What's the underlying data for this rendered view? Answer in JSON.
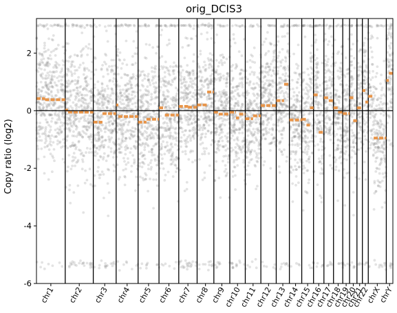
{
  "chart_data": {
    "type": "scatter",
    "title": "orig_DCIS3",
    "xlabel": "",
    "ylabel": "Copy ratio (log2)",
    "ylim": [
      -6,
      3.2
    ],
    "yticks": [
      -6,
      -4,
      -2,
      0,
      2
    ],
    "grid": false,
    "legend": "none",
    "colors": {
      "points": "#808080",
      "segments": "#e8954a",
      "lines": "#000000"
    },
    "chromosomes": [
      "chr1",
      "chr2",
      "chr3",
      "chr4",
      "chr5",
      "chr6",
      "chr7",
      "chr8",
      "chr9",
      "chr10",
      "chr11",
      "chr12",
      "chr13",
      "chr14",
      "chr15",
      "chr16",
      "chr17",
      "chr18",
      "chr19",
      "chr20",
      "chr21",
      "chr22",
      "chrX",
      "chrY"
    ],
    "chrom_sizes": [
      249,
      243,
      198,
      190,
      181,
      171,
      159,
      145,
      138,
      134,
      135,
      133,
      114,
      107,
      102,
      90,
      83,
      80,
      59,
      64,
      47,
      51,
      156,
      57
    ],
    "segments": [
      {
        "chrom": "chr1",
        "start": 0.0,
        "end": 0.3,
        "value": 0.42
      },
      {
        "chrom": "chr1",
        "start": 0.3,
        "end": 1.0,
        "value": 0.38
      },
      {
        "chrom": "chr2",
        "start": 0.0,
        "end": 0.1,
        "value": 0.02
      },
      {
        "chrom": "chr2",
        "start": 0.1,
        "end": 1.0,
        "value": -0.05
      },
      {
        "chrom": "chr3",
        "start": 0.0,
        "end": 0.4,
        "value": -0.4
      },
      {
        "chrom": "chr3",
        "start": 0.4,
        "end": 1.0,
        "value": -0.1
      },
      {
        "chrom": "chr4",
        "start": 0.0,
        "end": 0.1,
        "value": 0.2
      },
      {
        "chrom": "chr4",
        "start": 0.1,
        "end": 1.0,
        "value": -0.2
      },
      {
        "chrom": "chr5",
        "start": 0.0,
        "end": 0.4,
        "value": -0.4
      },
      {
        "chrom": "chr5",
        "start": 0.4,
        "end": 1.0,
        "value": -0.3
      },
      {
        "chrom": "chr6",
        "start": 0.0,
        "end": 0.3,
        "value": 0.1
      },
      {
        "chrom": "chr6",
        "start": 0.3,
        "end": 1.0,
        "value": -0.15
      },
      {
        "chrom": "chr7",
        "start": 0.0,
        "end": 0.5,
        "value": 0.15
      },
      {
        "chrom": "chr7",
        "start": 0.5,
        "end": 1.0,
        "value": 0.12
      },
      {
        "chrom": "chr8",
        "start": 0.0,
        "end": 0.6,
        "value": 0.2
      },
      {
        "chrom": "chr8",
        "start": 0.6,
        "end": 1.0,
        "value": 0.65
      },
      {
        "chrom": "chr9",
        "start": 0.0,
        "end": 0.3,
        "value": -0.05
      },
      {
        "chrom": "chr9",
        "start": 0.3,
        "end": 1.0,
        "value": -0.12
      },
      {
        "chrom": "chr10",
        "start": 0.0,
        "end": 0.4,
        "value": -0.05
      },
      {
        "chrom": "chr10",
        "start": 0.4,
        "end": 0.6,
        "value": -0.25
      },
      {
        "chrom": "chr10",
        "start": 0.6,
        "end": 1.0,
        "value": -0.12
      },
      {
        "chrom": "chr11",
        "start": 0.0,
        "end": 0.5,
        "value": -0.28
      },
      {
        "chrom": "chr11",
        "start": 0.5,
        "end": 1.0,
        "value": -0.18
      },
      {
        "chrom": "chr12",
        "start": 0.0,
        "end": 1.0,
        "value": 0.18
      },
      {
        "chrom": "chr13",
        "start": 0.0,
        "end": 0.6,
        "value": 0.35
      },
      {
        "chrom": "chr13",
        "start": 0.6,
        "end": 1.0,
        "value": 0.92
      },
      {
        "chrom": "chr14",
        "start": 0.0,
        "end": 1.0,
        "value": -0.32
      },
      {
        "chrom": "chr15",
        "start": 0.0,
        "end": 0.4,
        "value": -0.3
      },
      {
        "chrom": "chr15",
        "start": 0.4,
        "end": 0.7,
        "value": -0.5
      },
      {
        "chrom": "chr15",
        "start": 0.7,
        "end": 1.0,
        "value": 0.1
      },
      {
        "chrom": "chr16",
        "start": 0.0,
        "end": 0.5,
        "value": 0.55
      },
      {
        "chrom": "chr16",
        "start": 0.5,
        "end": 1.0,
        "value": -0.75
      },
      {
        "chrom": "chr17",
        "start": 0.0,
        "end": 0.5,
        "value": 0.45
      },
      {
        "chrom": "chr17",
        "start": 0.5,
        "end": 1.0,
        "value": 0.35
      },
      {
        "chrom": "chr18",
        "start": 0.0,
        "end": 0.5,
        "value": 0.1
      },
      {
        "chrom": "chr18",
        "start": 0.5,
        "end": 1.0,
        "value": -0.05
      },
      {
        "chrom": "chr19",
        "start": 0.0,
        "end": 1.0,
        "value": -0.1
      },
      {
        "chrom": "chr20",
        "start": 0.0,
        "end": 0.5,
        "value": 0.45
      },
      {
        "chrom": "chr20",
        "start": 0.5,
        "end": 1.0,
        "value": -0.35
      },
      {
        "chrom": "chr21",
        "start": 0.0,
        "end": 1.0,
        "value": 0.1
      },
      {
        "chrom": "chr22",
        "start": 0.0,
        "end": 0.5,
        "value": 0.7
      },
      {
        "chrom": "chr22",
        "start": 0.5,
        "end": 1.0,
        "value": 0.3
      },
      {
        "chrom": "chrX",
        "start": 0.0,
        "end": 0.3,
        "value": 0.5
      },
      {
        "chrom": "chrX",
        "start": 0.3,
        "end": 1.0,
        "value": -0.95
      },
      {
        "chrom": "chrY",
        "start": 0.0,
        "end": 0.4,
        "value": 1.05
      },
      {
        "chrom": "chrY",
        "start": 0.4,
        "end": 1.0,
        "value": 1.3
      }
    ]
  }
}
